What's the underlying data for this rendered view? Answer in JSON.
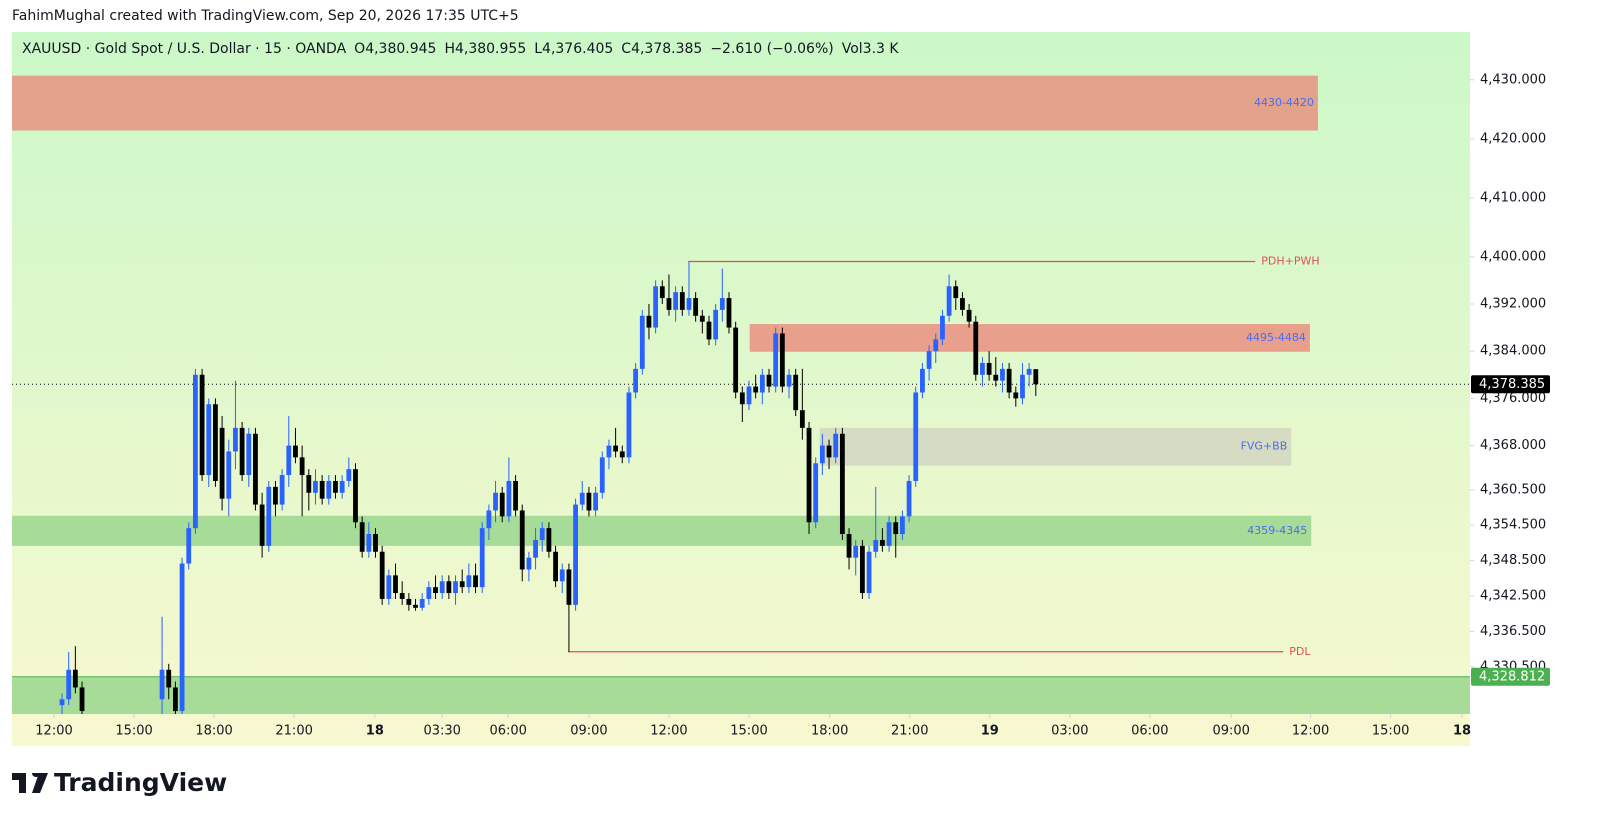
{
  "chart_data": {
    "type": "candlestick",
    "attribution": "FahimMughal created with TradingView.com, Sep 20, 2026 17:35 UTC+5",
    "symbol": "XAUUSD · Gold Spot / U.S. Dollar · 15 · OANDA",
    "legend_values": [
      "O4,380.945",
      "H4,380.955",
      "L4,376.405",
      "C4,378.385",
      "−2.610 (−0.06%)",
      "Vol3.3 K"
    ],
    "brand": "TradingView",
    "up_color": "#2962ff",
    "down_color": "#000000",
    "ylim": [
      4322.5,
      4438.1
    ],
    "yticks": [
      {
        "value": 4430,
        "label": "4,430.000"
      },
      {
        "value": 4420,
        "label": "4,420.000"
      },
      {
        "value": 4410,
        "label": "4,410.000"
      },
      {
        "value": 4400,
        "label": "4,400.000"
      },
      {
        "value": 4392,
        "label": "4,392.000"
      },
      {
        "value": 4384,
        "label": "4,384.000"
      },
      {
        "value": 4376,
        "label": "4,376.000"
      },
      {
        "value": 4368,
        "label": "4,368.000"
      },
      {
        "value": 4360.5,
        "label": "4,360.500"
      },
      {
        "value": 4354.5,
        "label": "4,354.500"
      },
      {
        "value": 4348.5,
        "label": "4,348.500"
      },
      {
        "value": 4342.5,
        "label": "4,342.500"
      },
      {
        "value": 4336.5,
        "label": "4,336.500"
      },
      {
        "value": 4330.5,
        "label": "4,330.500"
      }
    ],
    "xlim": [
      -0.5,
      218.1
    ],
    "xticks": [
      {
        "value": 5.8,
        "label": "12:00"
      },
      {
        "value": 17.8,
        "label": "15:00"
      },
      {
        "value": 29.8,
        "label": "18:00"
      },
      {
        "value": 41.8,
        "label": "21:00"
      },
      {
        "value": 53.9,
        "label": "18"
      },
      {
        "value": 64,
        "label": "03:30"
      },
      {
        "value": 73.9,
        "label": "06:00"
      },
      {
        "value": 86,
        "label": "09:00"
      },
      {
        "value": 98,
        "label": "12:00"
      },
      {
        "value": 110,
        "label": "15:00"
      },
      {
        "value": 122.1,
        "label": "18:00"
      },
      {
        "value": 134.1,
        "label": "21:00"
      },
      {
        "value": 146.1,
        "label": "19"
      },
      {
        "value": 158.1,
        "label": "03:00"
      },
      {
        "value": 170.1,
        "label": "06:00"
      },
      {
        "value": 182.3,
        "label": "09:00"
      },
      {
        "value": 194.2,
        "label": "12:00"
      },
      {
        "value": 206.2,
        "label": "15:00"
      },
      {
        "value": 216.9,
        "label": "18"
      }
    ],
    "x": [
      7,
      8,
      9,
      10,
      22,
      23,
      24,
      25,
      26,
      27,
      28,
      29,
      30,
      31,
      32,
      33,
      34,
      35,
      36,
      37,
      38,
      39,
      40,
      41,
      42,
      43,
      44,
      45,
      46,
      47,
      48,
      49,
      50,
      51,
      52,
      53,
      54,
      55,
      56,
      57,
      58,
      59,
      60,
      61,
      62,
      63,
      64,
      65,
      66,
      67,
      68,
      69,
      70,
      71,
      72,
      73,
      74,
      75,
      76,
      77,
      78,
      79,
      80,
      81,
      82,
      83,
      84,
      85,
      86,
      87,
      88,
      89,
      90,
      91,
      92,
      93,
      94,
      95,
      96,
      97,
      98,
      99,
      100,
      101,
      102,
      103,
      104,
      105,
      106,
      107,
      108,
      109,
      110,
      111,
      112,
      113,
      114,
      115,
      116,
      117,
      118,
      119,
      120,
      121,
      122,
      123,
      124,
      125,
      126,
      127,
      128,
      129,
      130,
      131,
      132,
      133,
      134,
      135,
      136,
      137,
      138,
      139,
      140,
      141,
      142,
      143,
      144,
      145,
      146,
      147,
      148,
      149,
      150,
      151,
      152,
      153
    ],
    "open": [
      4324,
      4325,
      4330,
      4327,
      4325,
      4330,
      4327,
      4323,
      4348,
      4354,
      4380,
      4363,
      4375,
      4371,
      4359,
      4367,
      4371,
      4363,
      4370,
      4358,
      4351,
      4361,
      4358,
      4363,
      4368,
      4366,
      4363,
      4360,
      4362,
      4359,
      4362,
      4360,
      4362,
      4364,
      4355,
      4350,
      4353,
      4350,
      4342,
      4346,
      4343,
      4342,
      4341,
      4340.5,
      4342,
      4344,
      4343,
      4345,
      4343,
      4345,
      4344,
      4346,
      4344,
      4354,
      4357,
      4360,
      4356,
      4362,
      4357,
      4347,
      4349,
      4352,
      4354,
      4350,
      4345,
      4347,
      4341,
      4358,
      4360,
      4357,
      4360,
      4366,
      4368,
      4367,
      4366,
      4377,
      4381,
      4390,
      4388,
      4395,
      4393,
      4391,
      4394,
      4391,
      4393,
      4390,
      4389,
      4386,
      4391,
      4393,
      4388,
      4377,
      4375,
      4378,
      4377,
      4380,
      4378,
      4387,
      4378,
      4380,
      4374,
      4371,
      4355,
      4365,
      4368,
      4366,
      4370,
      4353,
      4349,
      4351,
      4343,
      4350,
      4352,
      4351,
      4355,
      4353,
      4356,
      4362,
      4377,
      4381,
      4384,
      4386,
      4390,
      4395,
      4393,
      4391,
      4389,
      4380,
      4382,
      4380,
      4379,
      4381,
      4377,
      4376,
      4380,
      4380.945
    ],
    "high": [
      4326,
      4333,
      4334,
      4328,
      4339,
      4331,
      4328,
      4349,
      4355,
      4381,
      4381,
      4376,
      4376,
      4373,
      4369,
      4379,
      4372,
      4371,
      4371,
      4360,
      4362,
      4362,
      4364,
      4373,
      4371,
      4368,
      4364,
      4364,
      4363,
      4363,
      4363,
      4363,
      4366,
      4365,
      4356,
      4355,
      4354,
      4351,
      4347,
      4348,
      4345,
      4343,
      4342,
      4343,
      4345,
      4346,
      4346,
      4346,
      4346,
      4347,
      4348,
      4348,
      4355,
      4358,
      4362,
      4361,
      4366,
      4363,
      4358,
      4350,
      4354,
      4355,
      4355,
      4351,
      4348,
      4348,
      4359,
      4362,
      4361,
      4361,
      4367,
      4369,
      4371,
      4368,
      4378,
      4382,
      4391,
      4392,
      4396,
      4396,
      4397,
      4395,
      4395,
      4399.2,
      4394,
      4391,
      4390,
      4392,
      4398,
      4394,
      4389,
      4378,
      4379,
      4380,
      4381,
      4381,
      4388,
      4388,
      4381,
      4381,
      4381,
      4372,
      4366,
      4370,
      4369,
      4371,
      4371,
      4354,
      4352,
      4352,
      4351,
      4361,
      4354,
      4356,
      4356,
      4357,
      4363,
      4378,
      4382,
      4385,
      4387,
      4391,
      4397,
      4396,
      4394,
      4392,
      4390,
      4383,
      4384,
      4383,
      4382,
      4382,
      4378,
      4382,
      4382,
      4380.955
    ],
    "low": [
      4322,
      4324,
      4326,
      4322,
      4322,
      4325,
      4322,
      4322,
      4347,
      4353,
      4362,
      4361,
      4361,
      4357,
      4356,
      4364,
      4362,
      4361,
      4357,
      4349,
      4350,
      4356,
      4357,
      4361,
      4365,
      4356,
      4357,
      4358,
      4358,
      4358,
      4359,
      4359,
      4361,
      4354,
      4349,
      4349,
      4349,
      4341,
      4341,
      4342,
      4341,
      4340,
      4340,
      4340,
      4341,
      4342,
      4342,
      4342,
      4341,
      4343,
      4343,
      4343,
      4343,
      4352,
      4355,
      4355,
      4355,
      4356,
      4345,
      4345,
      4347,
      4350,
      4349,
      4344,
      4343,
      4333,
      4340,
      4357,
      4356,
      4356,
      4359,
      4364,
      4366,
      4365,
      4365,
      4376,
      4380,
      4386,
      4387,
      4392,
      4390,
      4389,
      4390,
      4390,
      4389,
      4387,
      4385,
      4385,
      4389,
      4387,
      4376,
      4372,
      4374,
      4376,
      4375,
      4377,
      4377,
      4377,
      4376,
      4373,
      4369,
      4353,
      4354,
      4363,
      4364,
      4365,
      4352,
      4347,
      4346,
      4342,
      4342,
      4349,
      4350,
      4350,
      4349,
      4352,
      4355,
      4361,
      4376,
      4379,
      4382,
      4385,
      4389,
      4391,
      4390,
      4388,
      4379,
      4378,
      4379,
      4378,
      4377,
      4376,
      4374.6,
      4375,
      4378,
      4376.405
    ],
    "close": [
      4325,
      4330,
      4327,
      4323,
      4330,
      4327,
      4323,
      4348,
      4354,
      4380,
      4363,
      4375,
      4362,
      4359,
      4367,
      4371,
      4363,
      4370,
      4358,
      4351,
      4361,
      4358,
      4363,
      4368,
      4366,
      4363,
      4360,
      4362,
      4359,
      4362,
      4360,
      4362,
      4364,
      4355,
      4350,
      4353,
      4350,
      4342,
      4346,
      4343,
      4342,
      4341,
      4340.5,
      4342,
      4344,
      4343,
      4345,
      4343,
      4345,
      4344,
      4346,
      4344,
      4354,
      4357,
      4360,
      4356,
      4362,
      4357,
      4347,
      4349,
      4352,
      4354,
      4350,
      4345,
      4347,
      4341,
      4358,
      4360,
      4357,
      4360,
      4366,
      4368,
      4367,
      4366,
      4377,
      4381,
      4390,
      4388,
      4395,
      4393,
      4391,
      4394,
      4391,
      4393,
      4390,
      4389,
      4386,
      4391,
      4393,
      4388,
      4377,
      4375,
      4378,
      4377,
      4380,
      4378,
      4387,
      4378,
      4380,
      4374,
      4371,
      4355,
      4365,
      4368,
      4366,
      4370,
      4353,
      4349,
      4351,
      4343,
      4350,
      4352,
      4351,
      4355,
      4353,
      4356,
      4362,
      4377,
      4381,
      4384,
      4386,
      4390,
      4395,
      4393,
      4391,
      4389,
      4380,
      4382,
      4380,
      4379,
      4381,
      4377,
      4376,
      4380,
      4381,
      4378.385
    ],
    "zones": [
      {
        "label": "4430-4420",
        "color": "#e2a28c",
        "x": [
          -0.5,
          195.3
        ],
        "y": [
          4421.4,
          4430.7
        ]
      },
      {
        "label": "4495-4484",
        "color": "#e8a08c",
        "x": [
          110.1,
          194.1
        ],
        "y": [
          4383.9,
          4388.6
        ]
      },
      {
        "label": "FVG+BB",
        "color": "#d6dcc4",
        "x": [
          120.6,
          191.3
        ],
        "y": [
          4364.6,
          4371
        ]
      },
      {
        "label": "4359-4345",
        "color": "#a6dc98",
        "x": [
          -0.5,
          194.3
        ],
        "y": [
          4351,
          4356.1
        ]
      },
      {
        "color": "#a6dc98",
        "x": [
          -0.5,
          218.1
        ],
        "y": [
          4318,
          4328.812
        ]
      }
    ],
    "zone_label_color": "#4a6cf0",
    "levels": [
      {
        "label": "PDH+PWH",
        "color": "#e05050",
        "x": [
          100.9,
          185.9
        ],
        "value": 4399.2
      },
      {
        "label": "PDL",
        "color": "#e05050",
        "x": [
          82.9,
          190.1
        ],
        "value": 4333.05
      }
    ],
    "price_labels": [
      {
        "value": 4378.385,
        "label": "4,378.385",
        "color": "#000000",
        "dotted": true
      },
      {
        "value": 4328.812,
        "label": "4,328.812",
        "color": "#4caf50",
        "dotted": false
      }
    ]
  }
}
